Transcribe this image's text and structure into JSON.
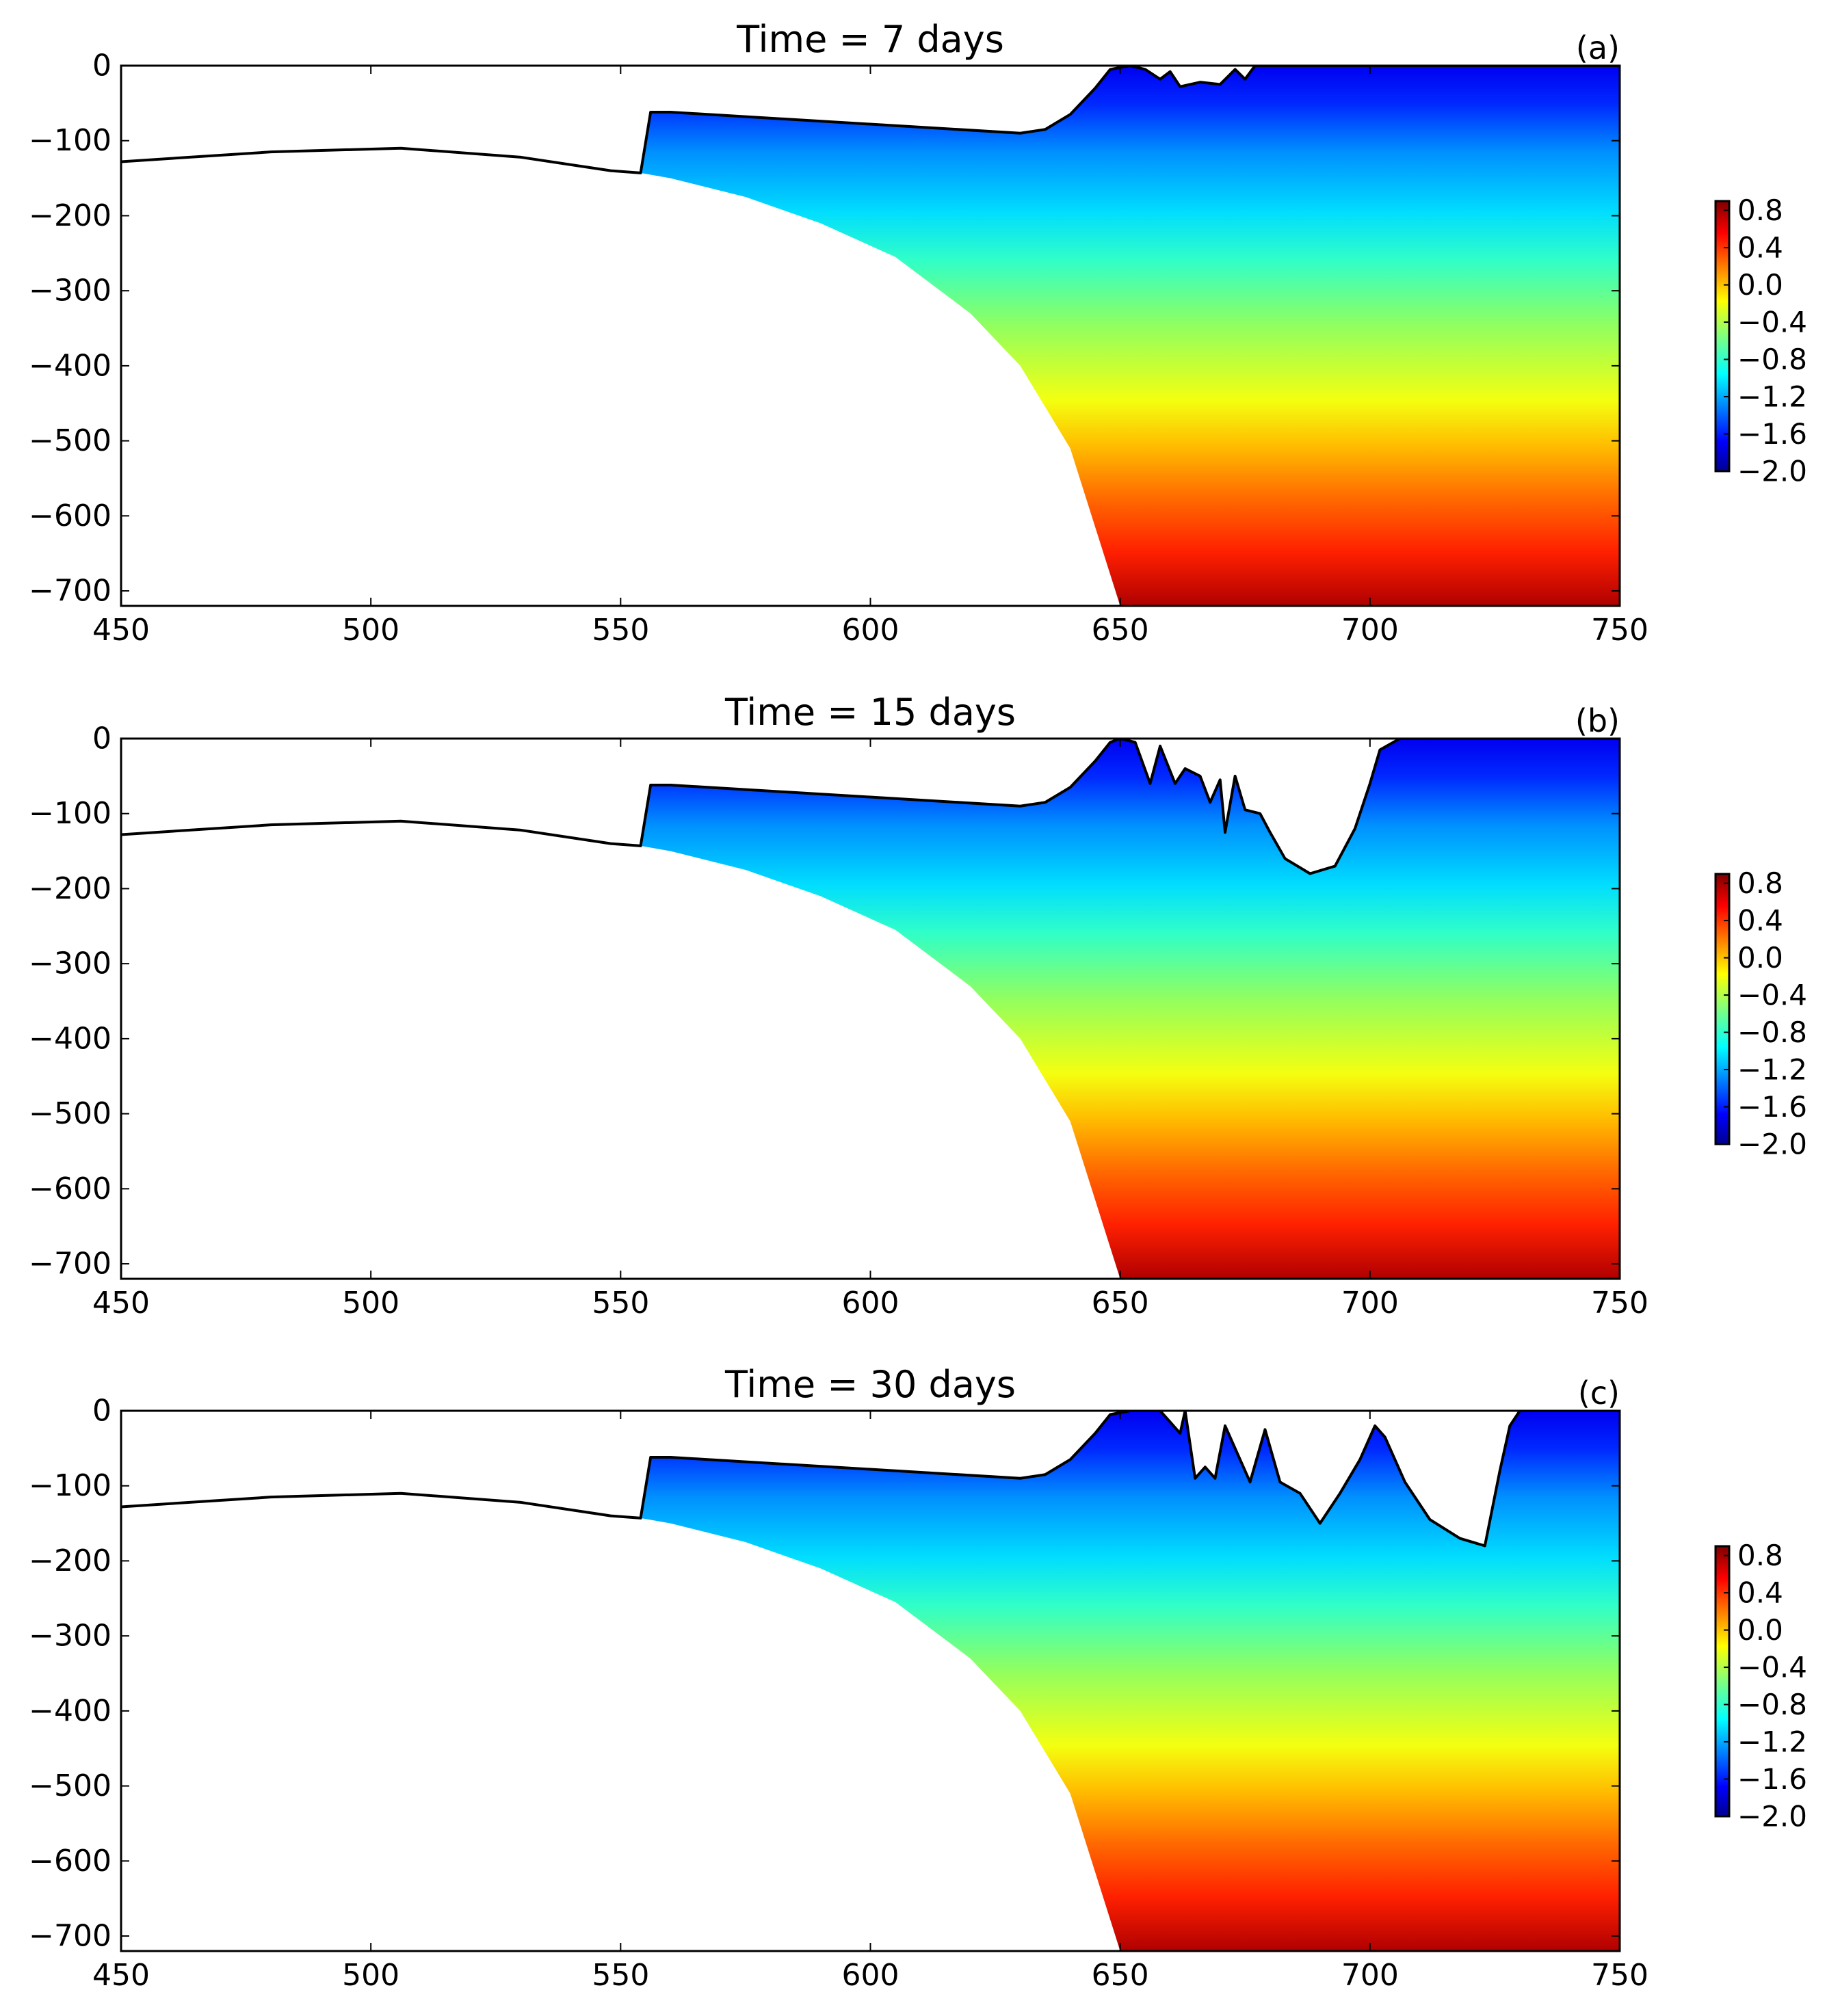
{
  "chart_data": [
    {
      "type": "heatmap",
      "panel_label": "(a)",
      "title": "Time = 7 days",
      "xlabel": "",
      "ylabel": "",
      "xlim": [
        450,
        750
      ],
      "ylim": [
        -720,
        0
      ],
      "xticks": [
        "450",
        "500",
        "550",
        "600",
        "650",
        "700",
        "750"
      ],
      "yticks": [
        "0",
        "−100",
        "−200",
        "−300",
        "−400",
        "−500",
        "−600",
        "−700"
      ],
      "ice_top": [
        [
          450,
          -128
        ],
        [
          480,
          -115
        ],
        [
          506,
          -110
        ],
        [
          530,
          -122
        ],
        [
          548,
          -140
        ],
        [
          554,
          -143
        ],
        [
          556,
          -62
        ],
        [
          560,
          -62
        ],
        [
          630,
          -90
        ],
        [
          635,
          -85
        ],
        [
          640,
          -65
        ],
        [
          645,
          -30
        ],
        [
          648,
          -5
        ],
        [
          652,
          0
        ],
        [
          655,
          -5
        ],
        [
          658,
          -18
        ],
        [
          660,
          -8
        ],
        [
          662,
          -28
        ],
        [
          666,
          -22
        ],
        [
          670,
          -25
        ],
        [
          673,
          -5
        ],
        [
          675,
          -18
        ],
        [
          677,
          0
        ],
        [
          750,
          0
        ]
      ],
      "bed_profile": [
        [
          554,
          -143
        ],
        [
          560,
          -150
        ],
        [
          575,
          -175
        ],
        [
          590,
          -210
        ],
        [
          605,
          -255
        ],
        [
          620,
          -330
        ],
        [
          630,
          -400
        ],
        [
          640,
          -510
        ],
        [
          650,
          -720
        ]
      ],
      "colorbar": {
        "ticks": [
          "0.8",
          "0.4",
          "0.0",
          "−0.4",
          "−0.8",
          "−1.2",
          "−1.6",
          "−2.0"
        ],
        "range": [
          -2.0,
          0.9
        ],
        "colormap": "jet"
      },
      "field_trend": "values increase with depth, from about -2.0 near 0 to 0.9 near -720"
    },
    {
      "type": "heatmap",
      "panel_label": "(b)",
      "title": "Time = 15 days",
      "xlabel": "",
      "ylabel": "",
      "xlim": [
        450,
        750
      ],
      "ylim": [
        -720,
        0
      ],
      "xticks": [
        "450",
        "500",
        "550",
        "600",
        "650",
        "700",
        "750"
      ],
      "yticks": [
        "0",
        "−100",
        "−200",
        "−300",
        "−400",
        "−500",
        "−600",
        "−700"
      ],
      "ice_top": [
        [
          450,
          -128
        ],
        [
          480,
          -115
        ],
        [
          506,
          -110
        ],
        [
          530,
          -122
        ],
        [
          548,
          -140
        ],
        [
          554,
          -143
        ],
        [
          556,
          -62
        ],
        [
          560,
          -62
        ],
        [
          630,
          -90
        ],
        [
          635,
          -85
        ],
        [
          640,
          -65
        ],
        [
          645,
          -30
        ],
        [
          648,
          -5
        ],
        [
          650,
          0
        ],
        [
          653,
          -5
        ],
        [
          656,
          -60
        ],
        [
          658,
          -10
        ],
        [
          661,
          -60
        ],
        [
          663,
          -40
        ],
        [
          666,
          -50
        ],
        [
          668,
          -85
        ],
        [
          670,
          -55
        ],
        [
          671,
          -125
        ],
        [
          673,
          -50
        ],
        [
          675,
          -95
        ],
        [
          678,
          -100
        ],
        [
          680,
          -125
        ],
        [
          683,
          -160
        ],
        [
          688,
          -180
        ],
        [
          693,
          -170
        ],
        [
          697,
          -120
        ],
        [
          700,
          -60
        ],
        [
          702,
          -15
        ],
        [
          706,
          0
        ],
        [
          750,
          0
        ]
      ],
      "bed_profile": [
        [
          554,
          -143
        ],
        [
          560,
          -150
        ],
        [
          575,
          -175
        ],
        [
          590,
          -210
        ],
        [
          605,
          -255
        ],
        [
          620,
          -330
        ],
        [
          630,
          -400
        ],
        [
          640,
          -510
        ],
        [
          650,
          -720
        ]
      ],
      "colorbar": {
        "ticks": [
          "0.8",
          "0.4",
          "0.0",
          "−0.4",
          "−0.8",
          "−1.2",
          "−1.6",
          "−2.0"
        ],
        "range": [
          -2.0,
          0.9
        ],
        "colormap": "jet"
      },
      "field_trend": "values increase with depth, from about -2.0 near 0 to 0.9 near -720"
    },
    {
      "type": "heatmap",
      "panel_label": "(c)",
      "title": "Time = 30 days",
      "xlabel": "",
      "ylabel": "",
      "xlim": [
        450,
        750
      ],
      "ylim": [
        -720,
        0
      ],
      "xticks": [
        "450",
        "500",
        "550",
        "600",
        "650",
        "700",
        "750"
      ],
      "yticks": [
        "0",
        "−100",
        "−200",
        "−300",
        "−400",
        "−500",
        "−600",
        "−700"
      ],
      "ice_top": [
        [
          450,
          -128
        ],
        [
          480,
          -115
        ],
        [
          506,
          -110
        ],
        [
          530,
          -122
        ],
        [
          548,
          -140
        ],
        [
          554,
          -143
        ],
        [
          556,
          -62
        ],
        [
          560,
          -62
        ],
        [
          630,
          -90
        ],
        [
          635,
          -85
        ],
        [
          640,
          -65
        ],
        [
          645,
          -30
        ],
        [
          648,
          -5
        ],
        [
          652,
          0
        ],
        [
          658,
          0
        ],
        [
          660,
          -15
        ],
        [
          662,
          -30
        ],
        [
          663,
          0
        ],
        [
          665,
          -90
        ],
        [
          667,
          -75
        ],
        [
          669,
          -90
        ],
        [
          671,
          -20
        ],
        [
          674,
          -65
        ],
        [
          676,
          -95
        ],
        [
          679,
          -25
        ],
        [
          682,
          -95
        ],
        [
          686,
          -110
        ],
        [
          690,
          -150
        ],
        [
          694,
          -110
        ],
        [
          698,
          -65
        ],
        [
          701,
          -20
        ],
        [
          703,
          -35
        ],
        [
          707,
          -95
        ],
        [
          712,
          -145
        ],
        [
          718,
          -170
        ],
        [
          723,
          -180
        ],
        [
          726,
          -80
        ],
        [
          728,
          -20
        ],
        [
          730,
          0
        ],
        [
          750,
          0
        ]
      ],
      "bed_profile": [
        [
          554,
          -143
        ],
        [
          560,
          -150
        ],
        [
          575,
          -175
        ],
        [
          590,
          -210
        ],
        [
          605,
          -255
        ],
        [
          620,
          -330
        ],
        [
          630,
          -400
        ],
        [
          640,
          -510
        ],
        [
          650,
          -720
        ]
      ],
      "colorbar": {
        "ticks": [
          "0.8",
          "0.4",
          "0.0",
          "−0.4",
          "−0.8",
          "−1.2",
          "−1.6",
          "−2.0"
        ],
        "range": [
          -2.0,
          0.9
        ],
        "colormap": "jet"
      },
      "field_trend": "values increase with depth, from about -2.0 near 0 to 0.9 near -720"
    }
  ]
}
